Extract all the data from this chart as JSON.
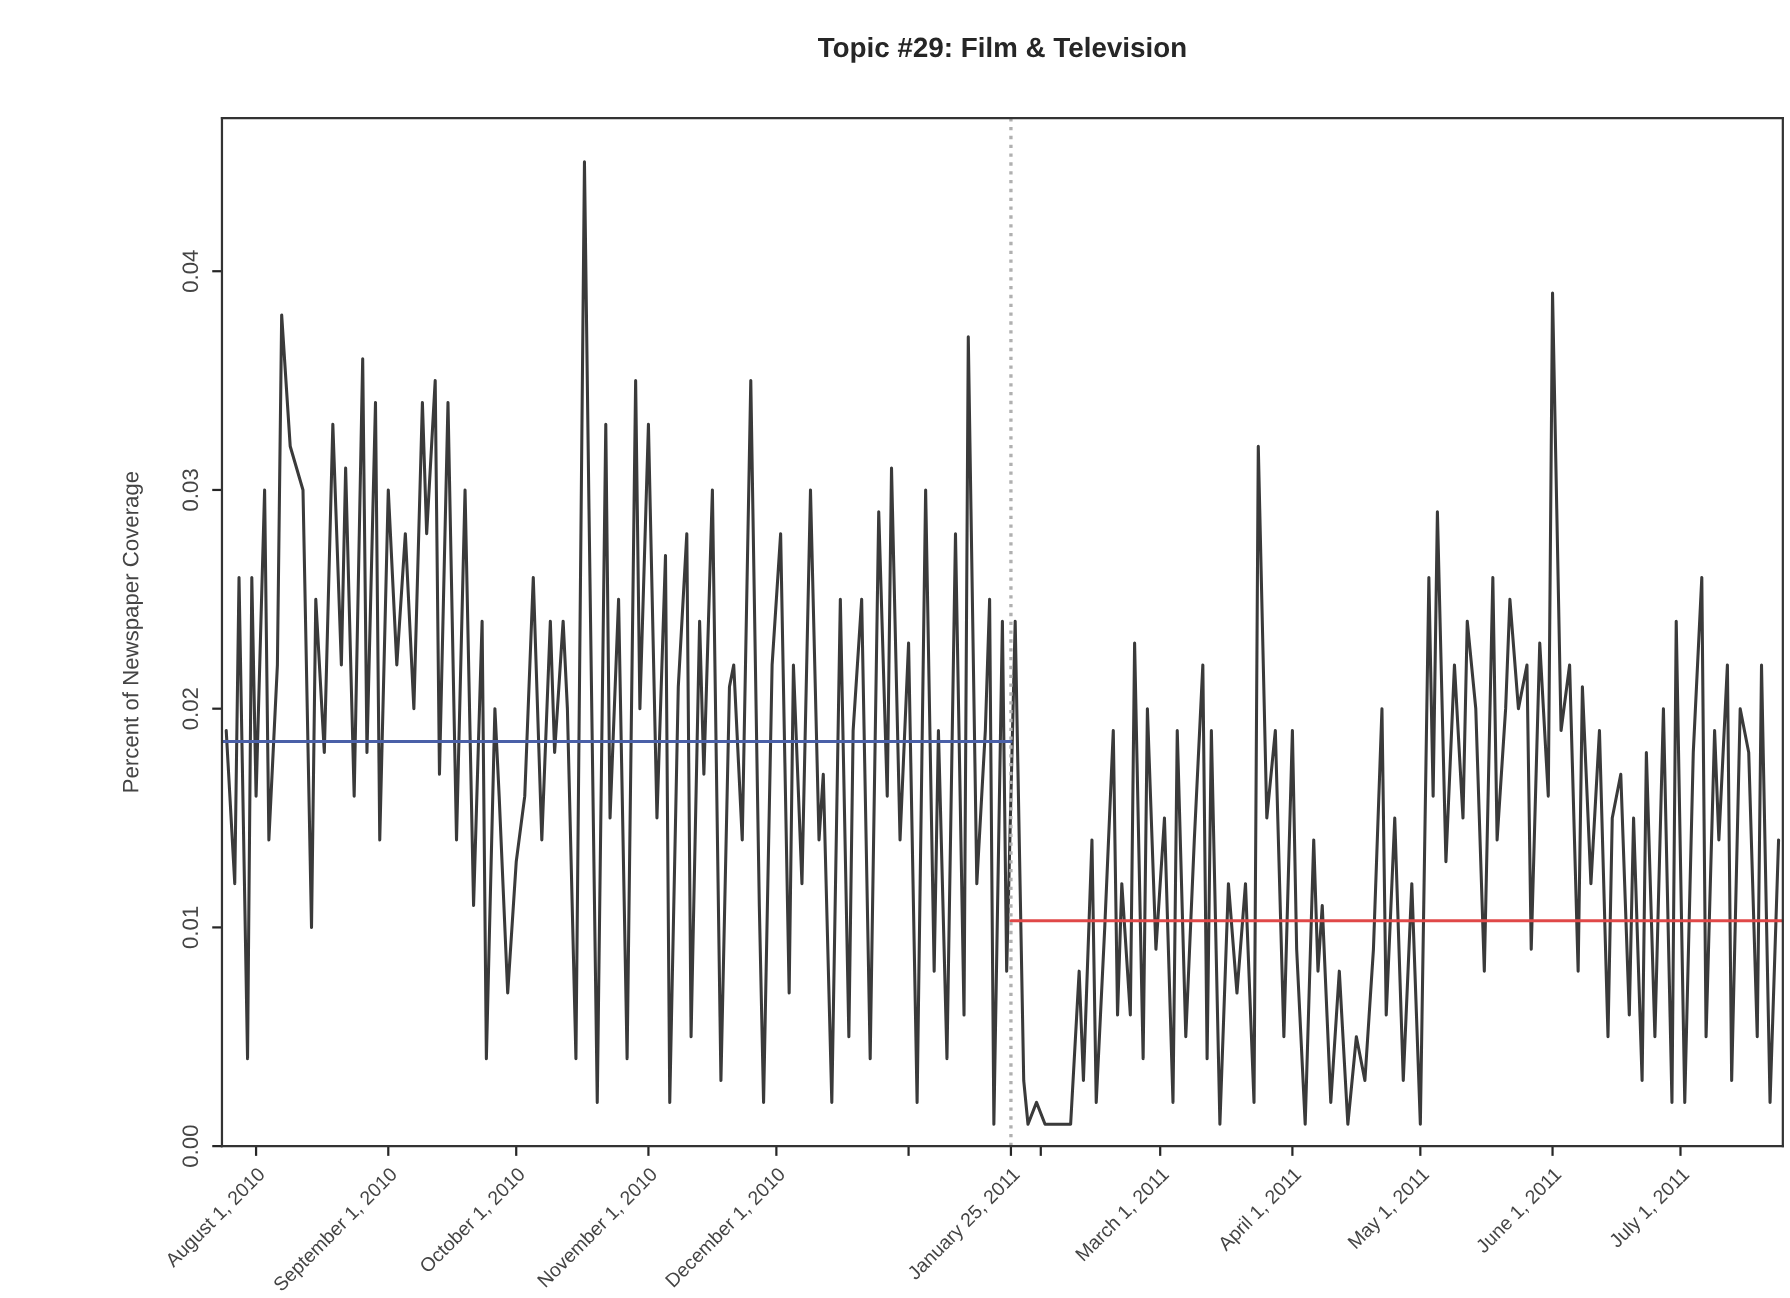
{
  "chart_data": {
    "type": "line",
    "title": "Topic #29: Film & Television",
    "ylabel": "Percent of Newspaper Coverage",
    "xlim": [
      "2010-07-24",
      "2011-07-25"
    ],
    "ylim": [
      0,
      0.047
    ],
    "xticks": [
      {
        "value": "2010-08-01",
        "label": "August 1, 2010"
      },
      {
        "value": "2010-09-01",
        "label": "September 1, 2010"
      },
      {
        "value": "2010-10-01",
        "label": "October 1, 2010"
      },
      {
        "value": "2010-11-01",
        "label": "November 1, 2010"
      },
      {
        "value": "2010-12-01",
        "label": "December 1, 2010"
      },
      {
        "value": "2011-01-01",
        "label": null
      },
      {
        "value": "2011-01-25",
        "label": "January 25, 2011"
      },
      {
        "value": "2011-02-01",
        "label": null
      },
      {
        "value": "2011-03-01",
        "label": "March 1, 2011"
      },
      {
        "value": "2011-04-01",
        "label": "April 1, 2011"
      },
      {
        "value": "2011-05-01",
        "label": "May 1, 2011"
      },
      {
        "value": "2011-06-01",
        "label": "June 1, 2011"
      },
      {
        "value": "2011-07-01",
        "label": "July 1, 2011"
      }
    ],
    "yticks": [
      {
        "value": 0,
        "label": "0.00"
      },
      {
        "value": 0.01,
        "label": "0.01"
      },
      {
        "value": 0.02,
        "label": "0.02"
      },
      {
        "value": 0.03,
        "label": "0.03"
      },
      {
        "value": 0.04,
        "label": "0.04"
      }
    ],
    "ref_lines": [
      {
        "axis": "x",
        "value": "2011-01-25",
        "label": null,
        "color": "#b0b0b0",
        "line_style": "dotted"
      }
    ],
    "series": [
      {
        "color": "#3a3a3a",
        "x": [
          "2010-07-25",
          "2010-07-27",
          "2010-07-28",
          "2010-07-30",
          "2010-07-31",
          "2010-08-01",
          "2010-08-03",
          "2010-08-04",
          "2010-08-06",
          "2010-08-07",
          "2010-08-09",
          "2010-08-12",
          "2010-08-14",
          "2010-08-15",
          "2010-08-17",
          "2010-08-19",
          "2010-08-21",
          "2010-08-22",
          "2010-08-24",
          "2010-08-26",
          "2010-08-27",
          "2010-08-29",
          "2010-08-30",
          "2010-09-01",
          "2010-09-03",
          "2010-09-05",
          "2010-09-07",
          "2010-09-09",
          "2010-09-10",
          "2010-09-12",
          "2010-09-13",
          "2010-09-15",
          "2010-09-17",
          "2010-09-19",
          "2010-09-21",
          "2010-09-23",
          "2010-09-24",
          "2010-09-26",
          "2010-09-27",
          "2010-09-29",
          "2010-10-01",
          "2010-10-03",
          "2010-10-05",
          "2010-10-07",
          "2010-10-09",
          "2010-10-10",
          "2010-10-12",
          "2010-10-13",
          "2010-10-15",
          "2010-10-17",
          "2010-10-18",
          "2010-10-20",
          "2010-10-22",
          "2010-10-23",
          "2010-10-25",
          "2010-10-27",
          "2010-10-29",
          "2010-10-30",
          "2010-11-01",
          "2010-11-03",
          "2010-11-05",
          "2010-11-06",
          "2010-11-08",
          "2010-11-10",
          "2010-11-11",
          "2010-11-13",
          "2010-11-14",
          "2010-11-16",
          "2010-11-18",
          "2010-11-20",
          "2010-11-21",
          "2010-11-23",
          "2010-11-25",
          "2010-11-27",
          "2010-11-28",
          "2010-11-30",
          "2010-12-02",
          "2010-12-04",
          "2010-12-05",
          "2010-12-07",
          "2010-12-09",
          "2010-12-11",
          "2010-12-12",
          "2010-12-14",
          "2010-12-16",
          "2010-12-18",
          "2010-12-19",
          "2010-12-21",
          "2010-12-23",
          "2010-12-25",
          "2010-12-27",
          "2010-12-28",
          "2010-12-30",
          "2011-01-01",
          "2011-01-03",
          "2011-01-05",
          "2011-01-07",
          "2011-01-08",
          "2011-01-10",
          "2011-01-12",
          "2011-01-14",
          "2011-01-15",
          "2011-01-17",
          "2011-01-19",
          "2011-01-20",
          "2011-01-21",
          "2011-01-23",
          "2011-01-24",
          "2011-01-26",
          "2011-01-28",
          "2011-01-29",
          "2011-01-31",
          "2011-02-02",
          "2011-02-04",
          "2011-02-06",
          "2011-02-08",
          "2011-02-10",
          "2011-02-11",
          "2011-02-13",
          "2011-02-14",
          "2011-02-16",
          "2011-02-18",
          "2011-02-19",
          "2011-02-20",
          "2011-02-22",
          "2011-02-23",
          "2011-02-25",
          "2011-02-26",
          "2011-02-28",
          "2011-03-02",
          "2011-03-04",
          "2011-03-05",
          "2011-03-07",
          "2011-03-09",
          "2011-03-11",
          "2011-03-12",
          "2011-03-13",
          "2011-03-15",
          "2011-03-17",
          "2011-03-19",
          "2011-03-21",
          "2011-03-23",
          "2011-03-24",
          "2011-03-26",
          "2011-03-28",
          "2011-03-30",
          "2011-04-01",
          "2011-04-02",
          "2011-04-04",
          "2011-04-06",
          "2011-04-07",
          "2011-04-08",
          "2011-04-10",
          "2011-04-12",
          "2011-04-14",
          "2011-04-16",
          "2011-04-18",
          "2011-04-20",
          "2011-04-22",
          "2011-04-23",
          "2011-04-25",
          "2011-04-27",
          "2011-04-29",
          "2011-05-01",
          "2011-05-03",
          "2011-05-04",
          "2011-05-05",
          "2011-05-07",
          "2011-05-09",
          "2011-05-11",
          "2011-05-12",
          "2011-05-14",
          "2011-05-16",
          "2011-05-18",
          "2011-05-19",
          "2011-05-21",
          "2011-05-22",
          "2011-05-24",
          "2011-05-26",
          "2011-05-27",
          "2011-05-29",
          "2011-05-31",
          "2011-06-01",
          "2011-06-03",
          "2011-06-05",
          "2011-06-07",
          "2011-06-08",
          "2011-06-10",
          "2011-06-12",
          "2011-06-14",
          "2011-06-15",
          "2011-06-17",
          "2011-06-19",
          "2011-06-20",
          "2011-06-22",
          "2011-06-23",
          "2011-06-25",
          "2011-06-27",
          "2011-06-29",
          "2011-06-30",
          "2011-07-02",
          "2011-07-04",
          "2011-07-06",
          "2011-07-07",
          "2011-07-09",
          "2011-07-10",
          "2011-07-12",
          "2011-07-13",
          "2011-07-15",
          "2011-07-17",
          "2011-07-19",
          "2011-07-20",
          "2011-07-22",
          "2011-07-24"
        ],
        "values": [
          0.019,
          0.012,
          0.026,
          0.004,
          0.026,
          0.016,
          0.03,
          0.014,
          0.022,
          0.038,
          0.032,
          0.03,
          0.01,
          0.025,
          0.018,
          0.033,
          0.022,
          0.031,
          0.016,
          0.036,
          0.018,
          0.034,
          0.014,
          0.03,
          0.022,
          0.028,
          0.02,
          0.034,
          0.028,
          0.035,
          0.017,
          0.034,
          0.014,
          0.03,
          0.011,
          0.024,
          0.004,
          0.02,
          0.016,
          0.007,
          0.013,
          0.016,
          0.026,
          0.014,
          0.024,
          0.018,
          0.024,
          0.02,
          0.004,
          0.045,
          0.03,
          0.002,
          0.033,
          0.015,
          0.025,
          0.004,
          0.035,
          0.02,
          0.033,
          0.015,
          0.027,
          0.002,
          0.021,
          0.028,
          0.005,
          0.024,
          0.017,
          0.03,
          0.003,
          0.021,
          0.022,
          0.014,
          0.035,
          0.011,
          0.002,
          0.022,
          0.028,
          0.007,
          0.022,
          0.012,
          0.03,
          0.014,
          0.017,
          0.002,
          0.025,
          0.005,
          0.019,
          0.025,
          0.004,
          0.029,
          0.016,
          0.031,
          0.014,
          0.023,
          0.002,
          0.03,
          0.008,
          0.019,
          0.004,
          0.028,
          0.006,
          0.037,
          0.012,
          0.019,
          0.025,
          0.001,
          0.024,
          0.008,
          0.024,
          0.003,
          0.001,
          0.002,
          0.001,
          0.001,
          0.001,
          0.001,
          0.008,
          0.003,
          0.014,
          0.002,
          0.01,
          0.019,
          0.006,
          0.012,
          0.006,
          0.023,
          0.004,
          0.02,
          0.009,
          0.015,
          0.002,
          0.019,
          0.005,
          0.014,
          0.022,
          0.004,
          0.019,
          0.001,
          0.012,
          0.007,
          0.012,
          0.002,
          0.032,
          0.015,
          0.019,
          0.005,
          0.019,
          0.009,
          0.001,
          0.014,
          0.008,
          0.011,
          0.002,
          0.008,
          0.001,
          0.005,
          0.003,
          0.009,
          0.02,
          0.006,
          0.015,
          0.003,
          0.012,
          0.001,
          0.026,
          0.016,
          0.029,
          0.013,
          0.022,
          0.015,
          0.024,
          0.02,
          0.008,
          0.026,
          0.014,
          0.02,
          0.025,
          0.02,
          0.022,
          0.009,
          0.023,
          0.016,
          0.039,
          0.019,
          0.022,
          0.008,
          0.021,
          0.012,
          0.019,
          0.005,
          0.015,
          0.017,
          0.006,
          0.015,
          0.003,
          0.018,
          0.005,
          0.02,
          0.002,
          0.024,
          0.002,
          0.018,
          0.026,
          0.005,
          0.019,
          0.014,
          0.022,
          0.003,
          0.02,
          0.018,
          0.005,
          0.022,
          0.002,
          0.014
        ]
      },
      {
        "color": "#4a60a8",
        "x": [
          "2010-07-24",
          "2011-01-25"
        ],
        "values": [
          0.0185,
          0.0185
        ]
      },
      {
        "color": "#e04848",
        "x": [
          "2011-01-25",
          "2011-07-25"
        ],
        "values": [
          0.0103,
          0.0103
        ]
      }
    ]
  }
}
